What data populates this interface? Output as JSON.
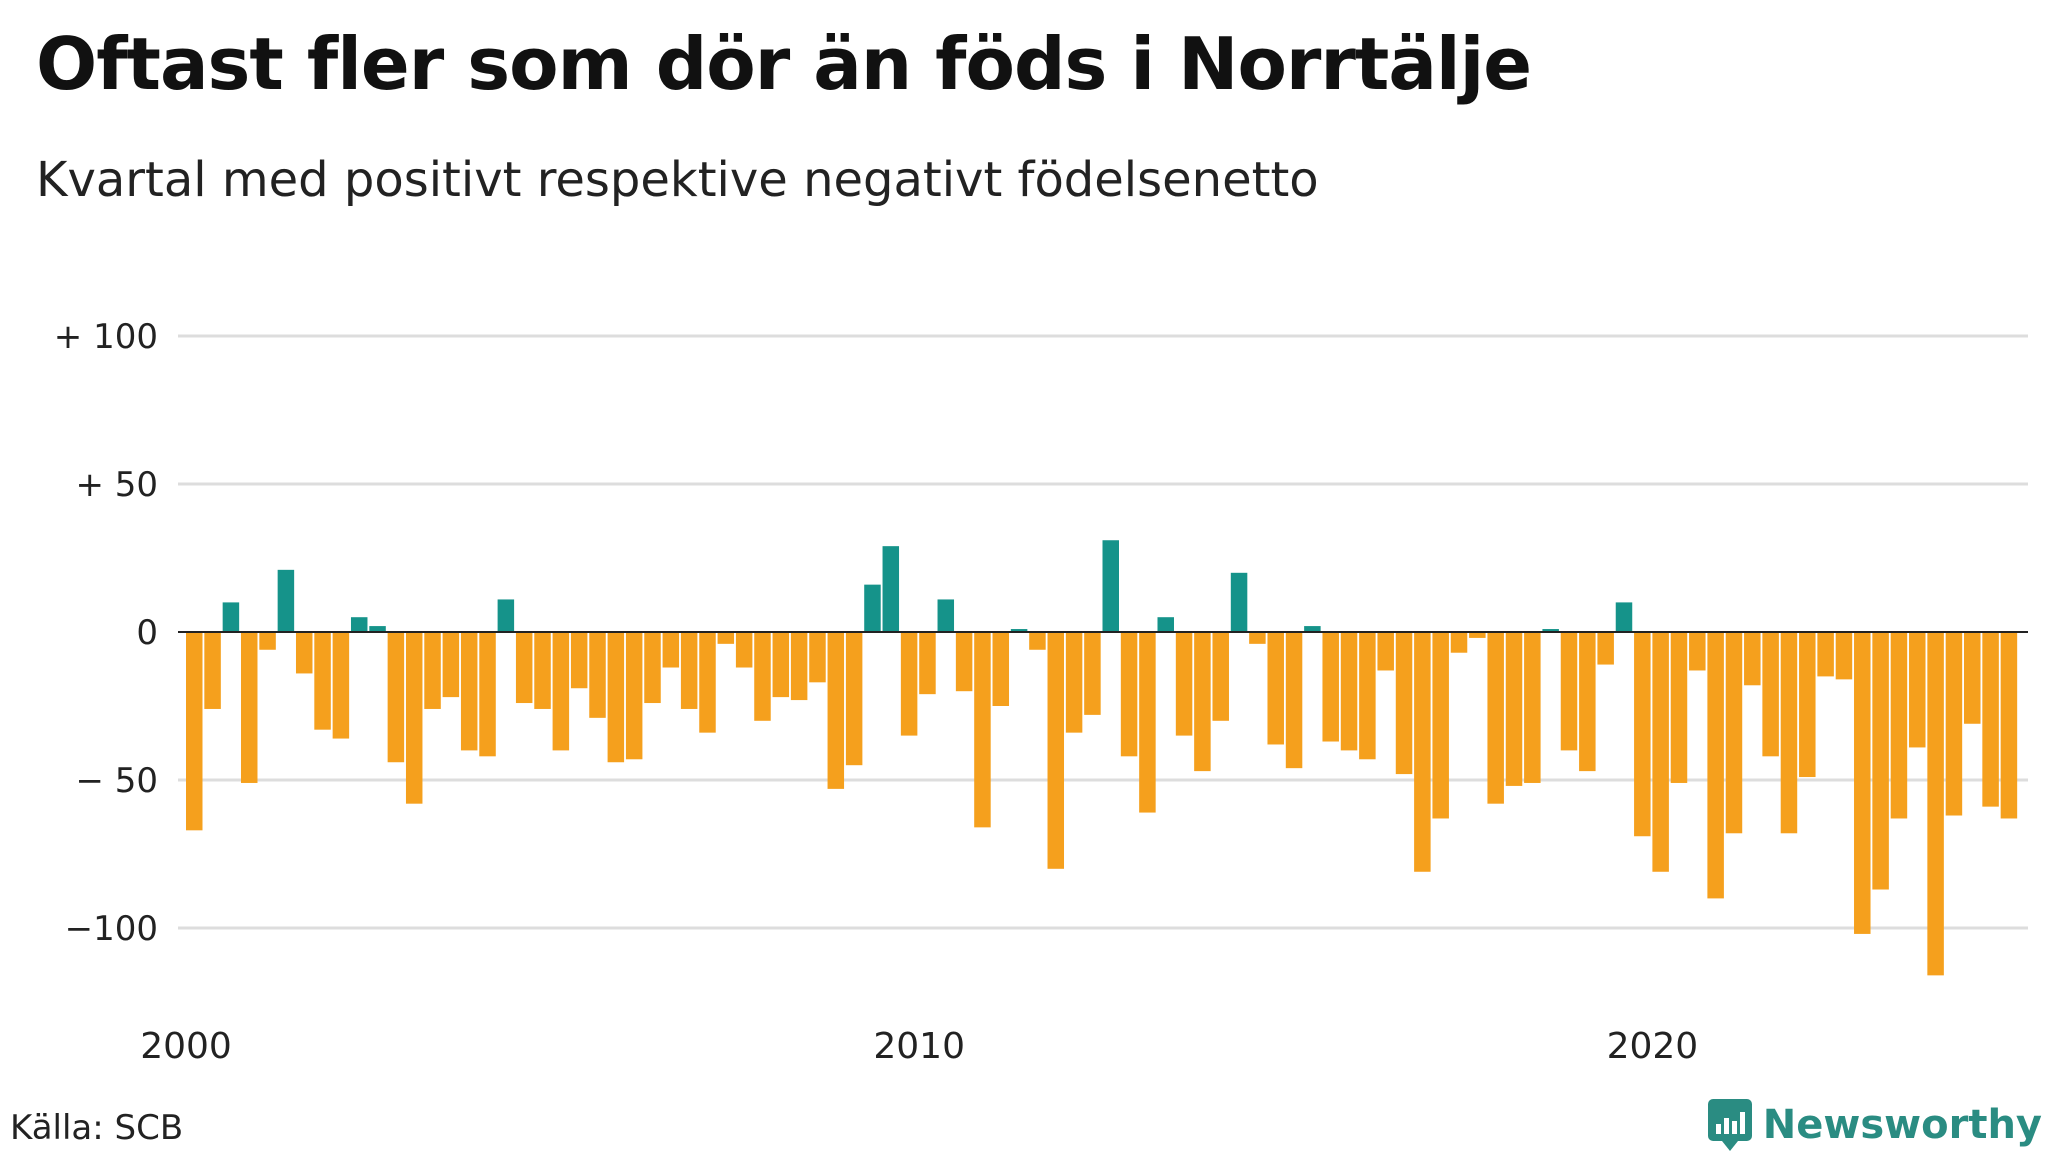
{
  "title": "Oftast fler som dör än föds i Norrtälje",
  "subtitle": "Kvartal med positivt respektive negativt födelsenetto",
  "source": "Källa: SCB",
  "brand": "Newsworthy",
  "colors": {
    "positive": "#15938a",
    "negative": "#f5a01d",
    "grid": "#dddddd",
    "zero": "#222222",
    "brand": "#2a8c82"
  },
  "chart_data": {
    "type": "bar",
    "x_start": "2000 Q1",
    "x_ticks": [
      {
        "year": 2000,
        "label": "2000"
      },
      {
        "year": 2010,
        "label": "2010"
      },
      {
        "year": 2020,
        "label": "2020"
      }
    ],
    "y_ticks": [
      {
        "value": 100,
        "label": "+ 100"
      },
      {
        "value": 50,
        "label": "+  50"
      },
      {
        "value": 0,
        "label": "0"
      },
      {
        "value": -50,
        "label": "− 50"
      },
      {
        "value": -100,
        "label": "−100"
      }
    ],
    "ylim": [
      -120,
      110
    ],
    "grid": true,
    "values": [
      -67,
      -26,
      10,
      -51,
      -6,
      21,
      -14,
      -33,
      -36,
      5,
      2,
      -44,
      -58,
      -26,
      -22,
      -40,
      -42,
      11,
      -24,
      -26,
      -40,
      -19,
      -29,
      -44,
      -43,
      -24,
      -12,
      -26,
      -34,
      -4,
      -12,
      -30,
      -22,
      -23,
      -17,
      -53,
      -45,
      16,
      29,
      -35,
      -21,
      11,
      -20,
      -66,
      -25,
      1,
      -6,
      -80,
      -34,
      -28,
      31,
      -42,
      -61,
      5,
      -35,
      -47,
      -30,
      20,
      -4,
      -38,
      -46,
      2,
      -37,
      -40,
      -43,
      -13,
      -48,
      -81,
      -63,
      -7,
      -2,
      -58,
      -52,
      -51,
      1,
      -40,
      -47,
      -11,
      10,
      -69,
      -81,
      -51,
      -13,
      -90,
      -68,
      -18,
      -42,
      -68,
      -49,
      -15,
      -16,
      -102,
      -87,
      -63,
      -39,
      -116,
      -62,
      -31,
      -59,
      -63
    ]
  }
}
